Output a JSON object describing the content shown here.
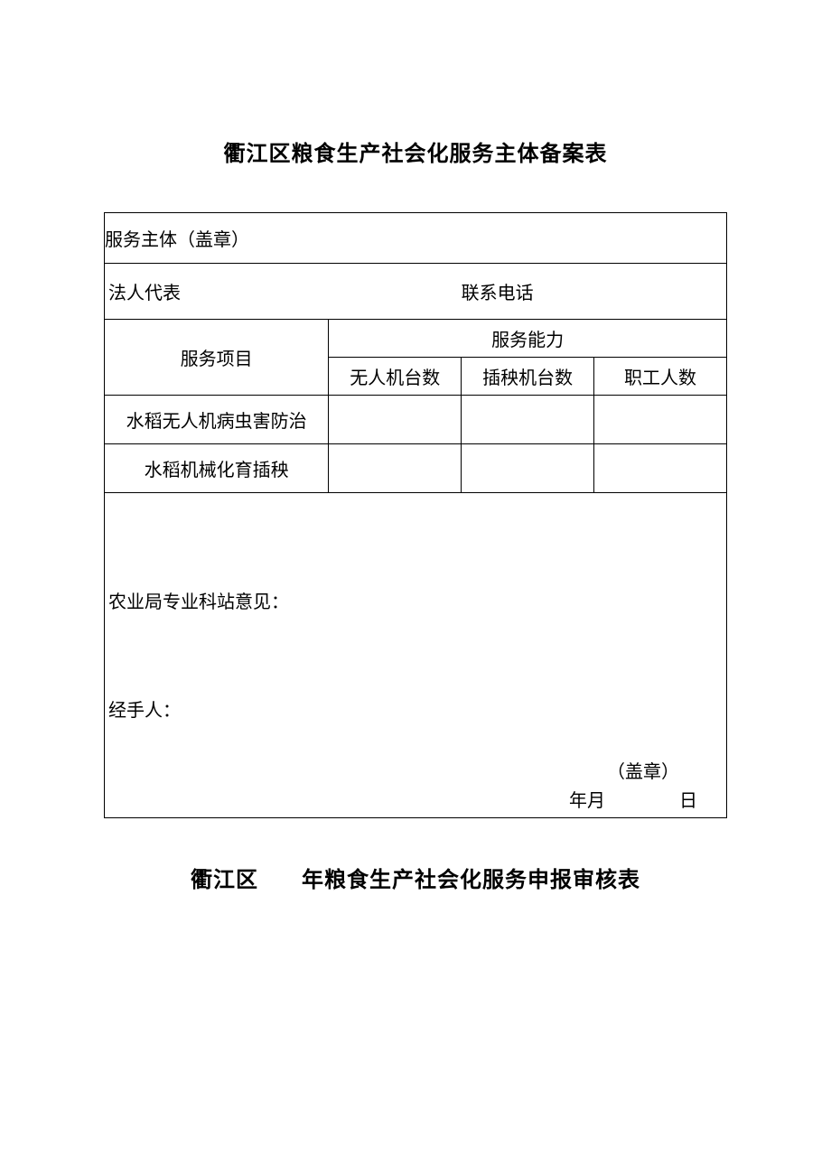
{
  "document": {
    "title1": "衢江区粮食生产社会化服务主体备案表",
    "title2_part1": "衢江区",
    "title2_part2": "年粮食生产社会化服务申报审核表",
    "background_color": "#ffffff",
    "border_color": "#000000",
    "text_color": "#000000",
    "title_fontsize": 24,
    "body_fontsize": 20
  },
  "form": {
    "row_seal": {
      "label": "服务主体（盖章）",
      "value": ""
    },
    "row_legal": {
      "label1": "法人代表",
      "value1": "",
      "label2": "联系电话",
      "value2": ""
    },
    "header": {
      "project": "服务项目",
      "capacity": "服务能力",
      "sub1": "无人机台数",
      "sub2": "插秧机台数",
      "sub3": "职工人数"
    },
    "rows": [
      {
        "project": "水稻无人机病虫害防治",
        "v1": "",
        "v2": "",
        "v3": ""
      },
      {
        "project": "水稻机械化育插秧",
        "v1": "",
        "v2": "",
        "v3": ""
      }
    ],
    "opinion": {
      "label1": "农业局专业科站意见：",
      "label2": "经手人：",
      "seal": "（盖章）",
      "date_year": "年",
      "date_month": "月",
      "date_day": "日"
    }
  }
}
